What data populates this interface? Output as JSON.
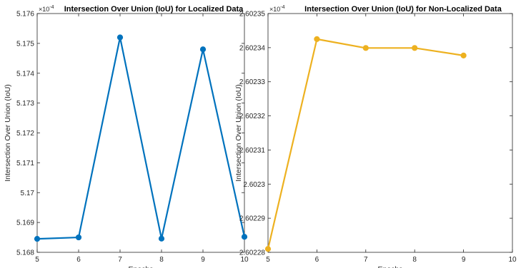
{
  "chart_data": [
    {
      "type": "line",
      "title": "Intersection Over Union (IoU) for Localized Data",
      "xlabel": "Epochs",
      "ylabel": "Intersection Over Union (IoU)",
      "exponent_label": "×10⁻⁴",
      "exponent_base": "×10",
      "exponent_power": "-4",
      "xlim": [
        5,
        10
      ],
      "ylim": [
        5.168,
        5.176
      ],
      "x_ticks": [
        "5",
        "6",
        "7",
        "8",
        "9",
        "10"
      ],
      "y_ticks": [
        "5.168",
        "5.169",
        "5.17",
        "5.171",
        "5.172",
        "5.173",
        "5.174",
        "5.175",
        "5.176"
      ],
      "grid": false,
      "color": "#0072BD",
      "x": [
        5,
        6,
        7,
        8,
        9,
        10
      ],
      "y": [
        5.16845,
        5.1685,
        5.1752,
        5.16846,
        5.1748,
        5.16852
      ]
    },
    {
      "type": "line",
      "title": "Intersection Over Union (IoU) for Non-Localized Data",
      "xlabel": "Epochs",
      "ylabel": "Intersection Over Union (IoU)",
      "exponent_label": "×10⁻⁴",
      "exponent_base": "×10",
      "exponent_power": "-4",
      "xlim": [
        5,
        10
      ],
      "ylim": [
        2.60228,
        2.60235
      ],
      "x_ticks": [
        "5",
        "6",
        "7",
        "8",
        "9",
        "10"
      ],
      "y_ticks": [
        "2.60228",
        "2.60229",
        "2.6023",
        "2.60231",
        "2.60232",
        "2.60233",
        "2.60234",
        "2.60235"
      ],
      "grid": false,
      "color": "#EDB120",
      "x": [
        5,
        6,
        7,
        8,
        9
      ],
      "y": [
        2.602281,
        2.6023425,
        2.6023399,
        2.6023399,
        2.6023377
      ]
    }
  ]
}
